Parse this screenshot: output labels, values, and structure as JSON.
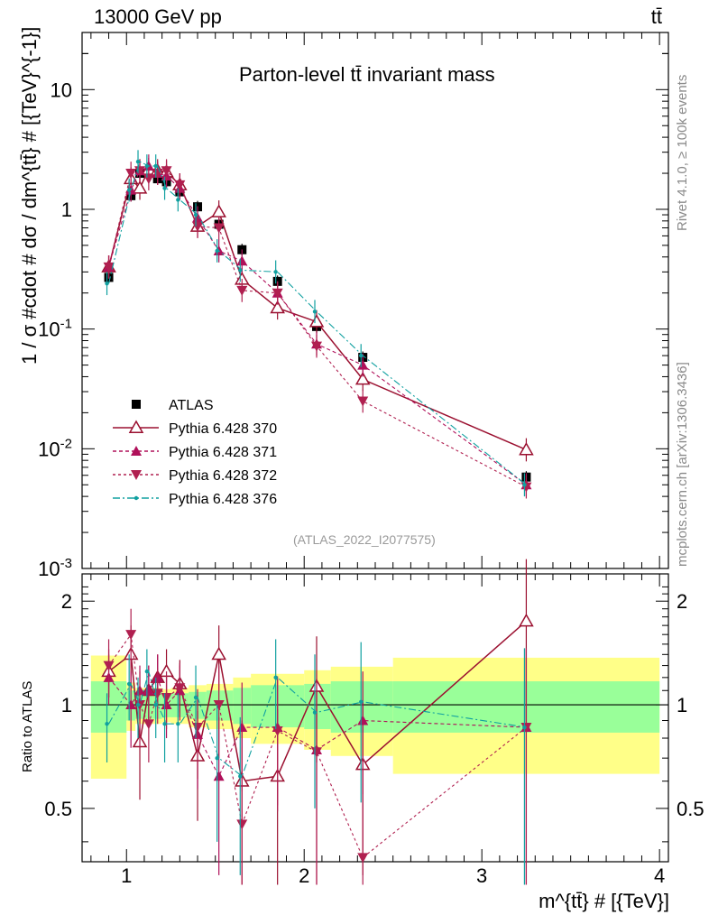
{
  "header": {
    "energy": "13000 GeV pp",
    "process": "tt̄"
  },
  "colors": {
    "data": "#000000",
    "s370": "#9b1030",
    "s371": "#b0105a",
    "s372": "#b02050",
    "s376": "#10a0a0",
    "band_yellow": "#ffff88",
    "band_green": "#99ff99"
  },
  "side_labels": {
    "rivet": "Rivet 4.1.0, ≥ 100k events",
    "mcplots": "mcplots.cern.ch [arXiv:1306.3436]"
  },
  "chart_data": {
    "type": "line",
    "title": "Parton-level tt̄ invariant mass",
    "xlabel": "m^{tt̄} # [{TeV}]",
    "ylabel": "1 / σ #cdot # dσ / dm^{tt̄} # [{TeV}^{-1}]",
    "ratio_ylabel": "Ratio to ATLAS",
    "watermark": "(ATLAS_2022_I2077575)",
    "xlim": [
      0.75,
      4.05
    ],
    "ylim": [
      0.001,
      30
    ],
    "ratio_ylim": [
      0.35,
      2.4
    ],
    "yscale": "log",
    "x_ticks": [
      "1",
      "2",
      "3",
      "4"
    ],
    "y_ticks": [
      "10",
      "1",
      "10^-1",
      "10^-2",
      "10^-3"
    ],
    "ratio_ticks": [
      "2",
      "1",
      "0.5"
    ],
    "bins": [
      0.8,
      1.0,
      1.05,
      1.1,
      1.15,
      1.2,
      1.25,
      1.35,
      1.45,
      1.6,
      1.7,
      2.0,
      2.15,
      2.5,
      4.0
    ],
    "x": [
      0.9,
      1.025,
      1.075,
      1.125,
      1.175,
      1.225,
      1.3,
      1.4,
      1.52,
      1.65,
      1.85,
      2.07,
      2.33,
      3.25
    ],
    "band_green": [
      0.17,
      0.1,
      0.09,
      0.09,
      0.09,
      0.08,
      0.08,
      0.09,
      0.1,
      0.12,
      0.14,
      0.15,
      0.17,
      0.17
    ],
    "band_yellow": [
      0.39,
      0.16,
      0.12,
      0.12,
      0.12,
      0.11,
      0.12,
      0.14,
      0.15,
      0.2,
      0.23,
      0.26,
      0.29,
      0.37
    ],
    "legend": [
      "ATLAS",
      "Pythia 6.428 370",
      "Pythia 6.428 371",
      "Pythia 6.428 372",
      "Pythia 6.428 376"
    ],
    "series": [
      {
        "name": "ATLAS",
        "marker": "square",
        "values": [
          0.27,
          1.3,
          2.0,
          2.0,
          1.8,
          1.7,
          1.4,
          1.05,
          0.75,
          0.46,
          0.25,
          0.105,
          0.058,
          0.0058
        ],
        "ratio": [
          1,
          1,
          1,
          1,
          1,
          1,
          1,
          1,
          1,
          1,
          1,
          1,
          1,
          1
        ]
      },
      {
        "name": "Pythia 6.428 370",
        "marker": "triangle-up-open",
        "values": [
          0.33,
          1.8,
          1.5,
          2.15,
          2.1,
          2.05,
          1.6,
          0.72,
          0.95,
          0.26,
          0.15,
          0.115,
          0.038,
          0.0098
        ],
        "ratio": [
          1.25,
          1.4,
          0.78,
          1.1,
          1.2,
          1.25,
          1.15,
          0.71,
          1.4,
          0.6,
          0.62,
          1.13,
          0.67,
          1.75
        ],
        "ratio_err": [
          0.2,
          0.3,
          0.25,
          0.2,
          0.2,
          0.2,
          0.2,
          0.25,
          0.3,
          0.3,
          0.35,
          0.45,
          0.35,
          0.9
        ]
      },
      {
        "name": "Pythia 6.428 371",
        "marker": "triangle-up",
        "values": [
          0.33,
          1.45,
          2.1,
          2.3,
          2.0,
          1.9,
          1.5,
          0.85,
          0.45,
          0.37,
          0.2,
          0.075,
          0.05,
          0.005
        ],
        "ratio": [
          1.2,
          1.0,
          1.1,
          1.1,
          1.2,
          1.0,
          1.1,
          0.82,
          0.62,
          0.86,
          0.86,
          0.74,
          0.9,
          0.86
        ],
        "ratio_err": [
          0.2,
          0.25,
          0.2,
          0.2,
          0.2,
          0.2,
          0.2,
          0.25,
          0.3,
          0.3,
          0.35,
          0.45,
          0.35,
          0.6
        ]
      },
      {
        "name": "Pythia 6.428 372",
        "marker": "triangle-down",
        "values": [
          0.33,
          2.0,
          2.1,
          1.8,
          2.0,
          2.1,
          1.6,
          0.72,
          0.7,
          0.21,
          0.2,
          0.072,
          0.025,
          0.0048
        ],
        "ratio": [
          1.3,
          1.6,
          1.0,
          0.88,
          1.08,
          1.05,
          1.12,
          0.86,
          1.0,
          0.45,
          0.84,
          0.73,
          0.36,
          0.86
        ],
        "ratio_err": [
          0.25,
          0.3,
          0.25,
          0.2,
          0.2,
          0.2,
          0.2,
          0.25,
          0.3,
          0.3,
          0.35,
          0.5,
          0.45,
          0.6
        ]
      },
      {
        "name": "Pythia 6.428 376",
        "marker": "star",
        "values": [
          0.24,
          1.45,
          2.5,
          2.3,
          2.3,
          1.5,
          1.2,
          0.9,
          0.45,
          0.31,
          0.3,
          0.14,
          0.06,
          0.005
        ],
        "ratio": [
          0.88,
          1.15,
          1.0,
          1.25,
          1.0,
          0.88,
          0.88,
          1.05,
          0.7,
          0.62,
          1.2,
          0.95,
          1.02,
          0.86
        ],
        "ratio_err": [
          0.2,
          0.25,
          0.2,
          0.2,
          0.2,
          0.2,
          0.2,
          0.25,
          0.3,
          0.3,
          0.35,
          0.45,
          0.5,
          0.6
        ]
      }
    ]
  }
}
